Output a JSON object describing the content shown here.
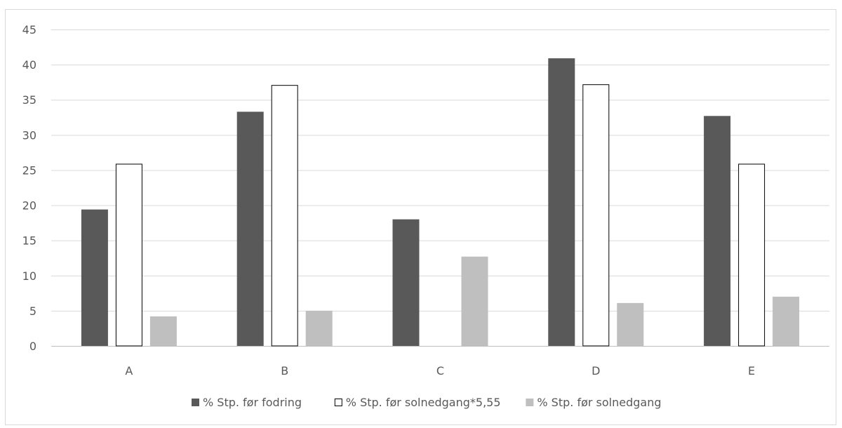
{
  "chart_data": {
    "type": "bar",
    "categories": [
      "A",
      "B",
      "C",
      "D",
      "E"
    ],
    "series": [
      {
        "name": "% Stp. før fodring",
        "values": [
          19.4,
          33.3,
          18.0,
          40.9,
          32.7
        ],
        "fill": "#595959",
        "stroke": "none"
      },
      {
        "name": "% Stp. før solnedgang*5,55",
        "values": [
          25.9,
          37.1,
          0,
          37.2,
          25.9
        ],
        "fill": "#ffffff",
        "stroke": "#000000"
      },
      {
        "name": "% Stp. før solnedgang",
        "values": [
          4.2,
          5.0,
          12.7,
          6.1,
          7.0
        ],
        "fill": "#bfbfbf",
        "stroke": "none"
      }
    ],
    "ylim": [
      0,
      45
    ],
    "yticks": [
      0,
      5,
      10,
      15,
      20,
      25,
      30,
      35,
      40,
      45
    ],
    "grid": true,
    "legend": "bottom",
    "colors": {
      "gridline": "#d9d9d9",
      "axis": "#bfbfbf",
      "text": "#595959"
    }
  }
}
